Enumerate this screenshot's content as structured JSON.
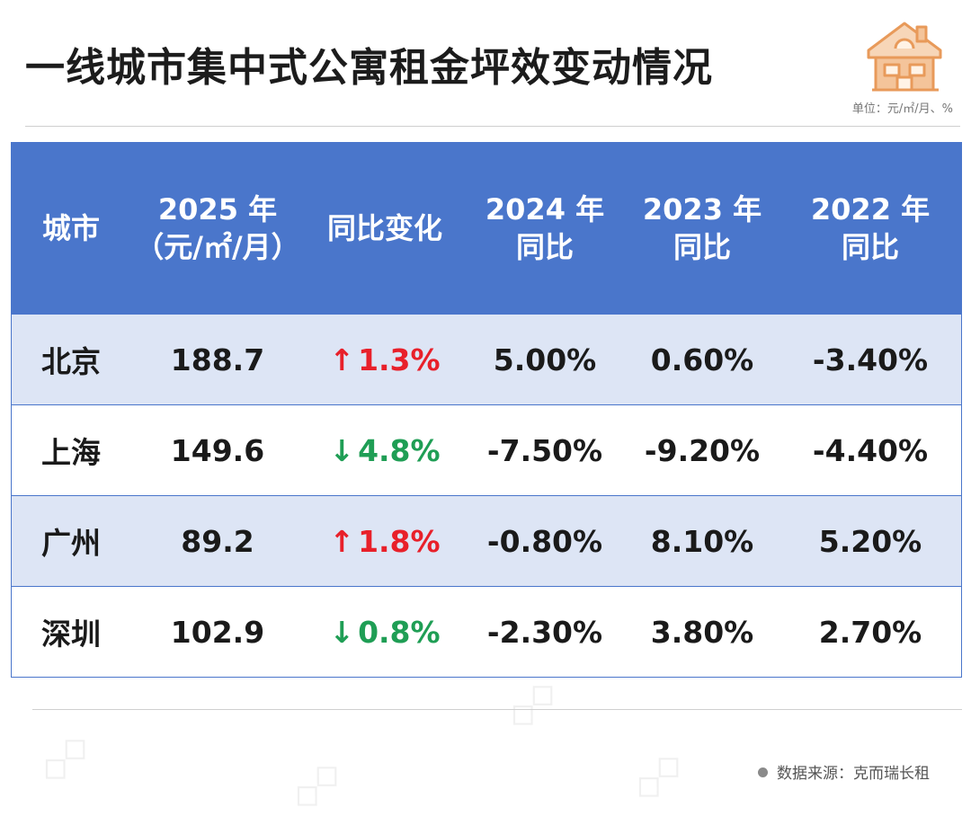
{
  "title": "一线城市集中式公寓租金坪效变动情况",
  "unit": "单位：元/㎡/月、%",
  "source": "数据来源：克而瑞长租",
  "logo_icon": "house-icon",
  "colors": {
    "header_bg": "#4a76cb",
    "shaded_row": "#dde5f5",
    "up": "#e8202a",
    "down": "#1f9e55"
  },
  "table": {
    "headers": [
      {
        "line1": "城市",
        "line2": ""
      },
      {
        "line1": "2025 年",
        "line2": "（元/㎡/月）"
      },
      {
        "line1": "同比变化",
        "line2": ""
      },
      {
        "line1": "2024 年",
        "line2": "同比"
      },
      {
        "line1": "2023 年",
        "line2": "同比"
      },
      {
        "line1": "2022 年",
        "line2": "同比"
      }
    ],
    "rows": [
      {
        "city": "北京",
        "value2025": "188.7",
        "change_arrow": "↑",
        "change": "1.3%",
        "direction": "up",
        "yoy2024": "5.00%",
        "yoy2023": "0.60%",
        "yoy2022": "-3.40%"
      },
      {
        "city": "上海",
        "value2025": "149.6",
        "change_arrow": "↓",
        "change": "4.8%",
        "direction": "down",
        "yoy2024": "-7.50%",
        "yoy2023": "-9.20%",
        "yoy2022": "-4.40%"
      },
      {
        "city": "广州",
        "value2025": "89.2",
        "change_arrow": "↑",
        "change": "1.8%",
        "direction": "up",
        "yoy2024": "-0.80%",
        "yoy2023": "8.10%",
        "yoy2022": "5.20%"
      },
      {
        "city": "深圳",
        "value2025": "102.9",
        "change_arrow": "↓",
        "change": "0.8%",
        "direction": "down",
        "yoy2024": "-2.30%",
        "yoy2023": "3.80%",
        "yoy2022": "2.70%"
      }
    ]
  }
}
